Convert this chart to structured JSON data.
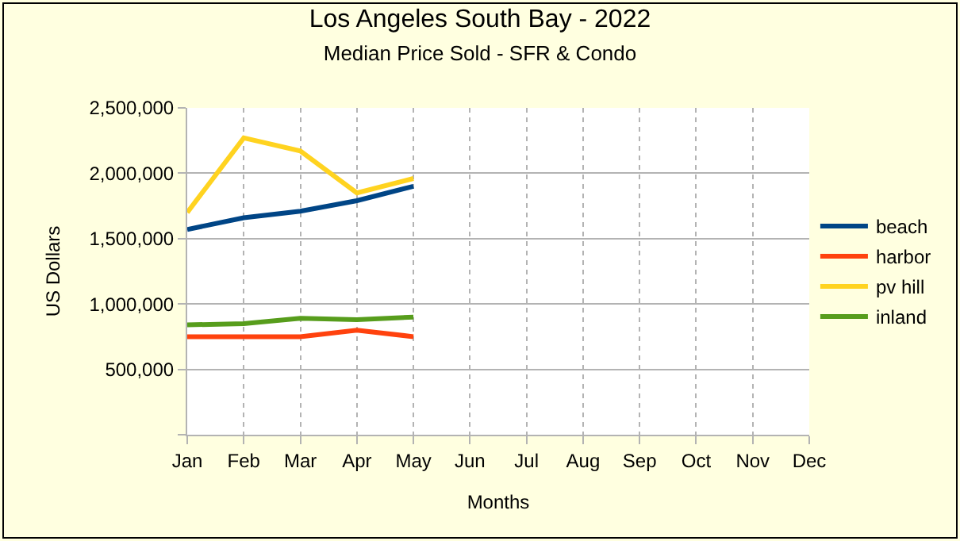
{
  "chart_data": {
    "type": "line",
    "title": "Los Angeles South Bay - 2022",
    "subtitle": "Median Price Sold - SFR & Condo",
    "xlabel": "Months",
    "ylabel": "US Dollars",
    "categories": [
      "Jan",
      "Feb",
      "Mar",
      "Apr",
      "May",
      "Jun",
      "Jul",
      "Aug",
      "Sep",
      "Oct",
      "Nov",
      "Dec"
    ],
    "series": [
      {
        "name": "beach",
        "color": "#004586",
        "values": [
          1570000,
          1660000,
          1710000,
          1790000,
          1900000,
          null,
          null,
          null,
          null,
          null,
          null,
          null
        ]
      },
      {
        "name": "harbor",
        "color": "#ff420e",
        "values": [
          750000,
          750000,
          750000,
          800000,
          750000,
          null,
          null,
          null,
          null,
          null,
          null,
          null
        ]
      },
      {
        "name": "pv hill",
        "color": "#ffd320",
        "values": [
          1700000,
          2270000,
          2170000,
          1850000,
          1960000,
          null,
          null,
          null,
          null,
          null,
          null,
          null
        ]
      },
      {
        "name": "inland",
        "color": "#579d1c",
        "values": [
          840000,
          850000,
          890000,
          880000,
          900000,
          null,
          null,
          null,
          null,
          null,
          null,
          null
        ]
      }
    ],
    "ylim": [
      0,
      2500000
    ],
    "yticks": [
      {
        "value": 0,
        "label": null
      },
      {
        "value": 500000,
        "label": "500,000"
      },
      {
        "value": 1000000,
        "label": "1,000,000"
      },
      {
        "value": 1500000,
        "label": "1,500,000"
      },
      {
        "value": 2000000,
        "label": "2,000,000"
      },
      {
        "value": 2500000,
        "label": "2,500,000"
      }
    ],
    "grid": true,
    "legend": "right",
    "marker": "none",
    "line_style": "solid"
  }
}
